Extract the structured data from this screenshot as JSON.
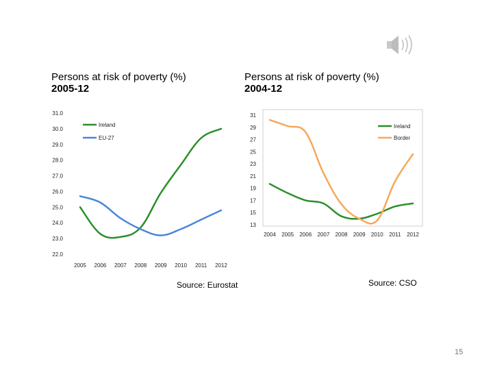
{
  "slide": {
    "page_number": "15"
  },
  "charts": {
    "left": {
      "title_line1": "Persons at risk of poverty (%)",
      "title_line2": "2005-12",
      "source": "Source: Eurostat"
    },
    "right": {
      "title_line1": "Persons at risk of poverty (%)",
      "title_line2": "2004-12",
      "source": "Source: CSO"
    }
  },
  "chart_data": [
    {
      "type": "line",
      "title": "Persons at risk of poverty (%) 2005-12",
      "categories": [
        "2005",
        "2006",
        "2007",
        "2008",
        "2009",
        "2010",
        "2011",
        "2012"
      ],
      "ylim": [
        22.0,
        31.0
      ],
      "yticks": [
        "22.0",
        "23.0",
        "24.0",
        "25.0",
        "26.0",
        "27.0",
        "28.0",
        "29.0",
        "30.0",
        "31.0"
      ],
      "legend_position": "top-left",
      "series": [
        {
          "name": "Ireland",
          "color": "#2a8f2a",
          "values": [
            25.0,
            23.3,
            23.1,
            23.7,
            25.9,
            27.7,
            29.4,
            30.0
          ]
        },
        {
          "name": "EU-27",
          "color": "#4a86d6",
          "values": [
            25.7,
            25.3,
            24.3,
            23.6,
            23.2,
            23.6,
            24.2,
            24.8
          ]
        }
      ]
    },
    {
      "type": "line",
      "title": "Persons at risk of poverty (%) 2004-12",
      "categories": [
        "2004",
        "2005",
        "2006",
        "2007",
        "2008",
        "2009",
        "2010",
        "2011",
        "2012"
      ],
      "ylim": [
        13,
        31
      ],
      "yticks": [
        "13",
        "15",
        "17",
        "19",
        "21",
        "23",
        "25",
        "27",
        "29",
        "31"
      ],
      "legend_position": "top-right",
      "series": [
        {
          "name": "Ireland",
          "color": "#2a8f2a",
          "values": [
            19.7,
            18.2,
            17.0,
            16.5,
            14.4,
            14.0,
            14.8,
            16.0,
            16.5
          ]
        },
        {
          "name": "Border",
          "color": "#f4a85a",
          "values": [
            30.2,
            29.2,
            28.2,
            21.5,
            16.4,
            14.0,
            13.7,
            20.1,
            24.6
          ]
        }
      ]
    }
  ]
}
